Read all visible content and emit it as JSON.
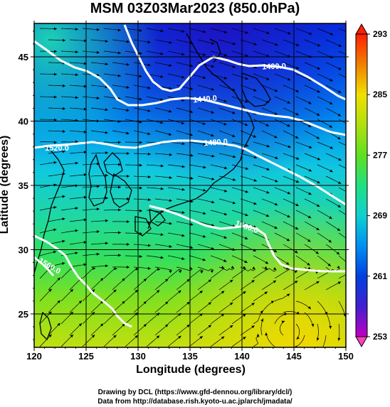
{
  "title": "MSM 03Z03Mar2023 (850.0hPa)",
  "axes": {
    "xlabel": "Longitude (degrees)",
    "ylabel": "Latitude  (degrees)",
    "xlim": [
      120,
      150
    ],
    "ylim": [
      22.4,
      47.6
    ],
    "xticks": [
      "120",
      "125",
      "130",
      "135",
      "140",
      "145",
      "150"
    ],
    "yticks": [
      "25",
      "30",
      "35",
      "40",
      "45"
    ]
  },
  "colorbar": {
    "min": 253,
    "max": 293,
    "ticks": [
      "253",
      "261",
      "269",
      "277",
      "285",
      "293"
    ],
    "colors": [
      "#c000c0",
      "#4020d0",
      "#0040e0",
      "#0090f0",
      "#10d0d0",
      "#20e080",
      "#60e020",
      "#b0e010",
      "#f0e000",
      "#f08000",
      "#ff2000"
    ]
  },
  "contours": [
    {
      "label": "1400.0"
    },
    {
      "label": "1440.0"
    },
    {
      "label": "1480.0"
    },
    {
      "label": "1520.0"
    },
    {
      "label": "1560.0"
    },
    {
      "label": "1560.0"
    }
  ],
  "credits": {
    "line1": "Drawing by DCL (https://www.gfd-dennou.org/library/dcl/)",
    "line2": "Data from http://database.rish.kyoto-u.ac.jp/arch/jmadata/"
  }
}
